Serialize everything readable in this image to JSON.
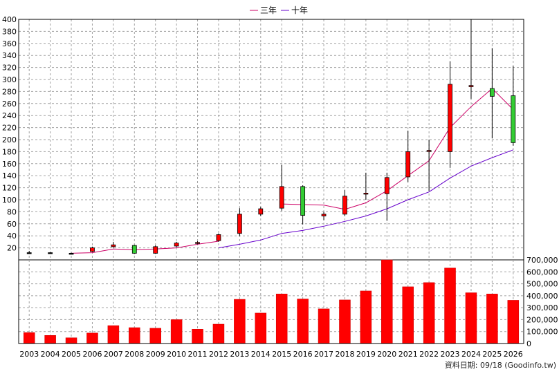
{
  "legend": [
    {
      "label": "三年",
      "color": "#cc0066"
    },
    {
      "label": "十年",
      "color": "#6600cc"
    }
  ],
  "source_text": "資料日期: 09/18  (Goodinfo.tw)",
  "colors": {
    "up": "#ff0000",
    "down": "#33cc33",
    "volume": "#ff0000",
    "grid": "#a0a0a0",
    "ma3": "#cc0066",
    "ma10": "#6600cc"
  },
  "chart_data": [
    {
      "type": "candlestick",
      "title": "",
      "xlabel": "",
      "ylabel": "",
      "ylim": [
        0,
        400
      ],
      "yticks": [
        20,
        40,
        60,
        80,
        100,
        120,
        140,
        160,
        180,
        200,
        220,
        240,
        260,
        280,
        300,
        320,
        340,
        360,
        380,
        400
      ],
      "grid": true,
      "legend_position": "top-center",
      "categories": [
        "2003",
        "2004",
        "2005",
        "2006",
        "2007",
        "2008",
        "2009",
        "2010",
        "2011",
        "2012",
        "2013",
        "2014",
        "2015",
        "2016",
        "2017",
        "2018",
        "2019",
        "2020",
        "2021",
        "2022",
        "2023",
        "2024",
        "2025",
        "2026"
      ],
      "candles": [
        {
          "open": 12,
          "close": 12,
          "high": 15,
          "low": 10
        },
        {
          "open": 12,
          "close": 12,
          "high": 13,
          "low": 11
        },
        {
          "open": 11,
          "close": 11,
          "high": 12,
          "low": 10
        },
        {
          "open": 14,
          "close": 20,
          "high": 22,
          "low": 13
        },
        {
          "open": 22,
          "close": 25,
          "high": 30,
          "low": 20
        },
        {
          "open": 24,
          "close": 11,
          "high": 25,
          "low": 10
        },
        {
          "open": 11,
          "close": 22,
          "high": 24,
          "low": 10
        },
        {
          "open": 23,
          "close": 28,
          "high": 30,
          "low": 21
        },
        {
          "open": 28,
          "close": 29,
          "high": 31,
          "low": 26
        },
        {
          "open": 32,
          "close": 42,
          "high": 44,
          "low": 30
        },
        {
          "open": 44,
          "close": 76,
          "high": 86,
          "low": 40
        },
        {
          "open": 76,
          "close": 85,
          "high": 88,
          "low": 73
        },
        {
          "open": 86,
          "close": 122,
          "high": 158,
          "low": 82
        },
        {
          "open": 122,
          "close": 74,
          "high": 124,
          "low": 59
        },
        {
          "open": 73,
          "close": 76,
          "high": 80,
          "low": 66
        },
        {
          "open": 76,
          "close": 106,
          "high": 116,
          "low": 73
        },
        {
          "open": 110,
          "close": 111,
          "high": 145,
          "low": 100
        },
        {
          "open": 110,
          "close": 137,
          "high": 145,
          "low": 65
        },
        {
          "open": 138,
          "close": 180,
          "high": 215,
          "low": 130
        },
        {
          "open": 181,
          "close": 182,
          "high": 200,
          "low": 115
        },
        {
          "open": 180,
          "close": 292,
          "high": 330,
          "low": 153
        },
        {
          "open": 288,
          "close": 290,
          "high": 400,
          "low": 268
        },
        {
          "open": 285,
          "close": 272,
          "high": 352,
          "low": 202
        },
        {
          "open": 273,
          "close": 195,
          "high": 322,
          "low": 190
        }
      ],
      "series": [
        {
          "name": "三年",
          "values": [
            null,
            null,
            11,
            12,
            18,
            17,
            18,
            20,
            26,
            31,
            null,
            null,
            93,
            92,
            91,
            84,
            95,
            115,
            140,
            165,
            220,
            255,
            285,
            250
          ]
        },
        {
          "name": "十年",
          "values": [
            null,
            null,
            null,
            null,
            null,
            null,
            null,
            null,
            null,
            20,
            26,
            33,
            44,
            49,
            56,
            64,
            73,
            85,
            100,
            113,
            136,
            156,
            170,
            183
          ]
        }
      ]
    },
    {
      "type": "bar",
      "title": "",
      "xlabel": "",
      "ylabel": "",
      "ylim": [
        0,
        700000
      ],
      "yticks": [
        0,
        100000,
        200000,
        300000,
        400000,
        500000,
        600000,
        700000
      ],
      "ytick_labels": [
        "0",
        "100,000",
        "200,000",
        "300,000",
        "400,000",
        "500,000",
        "600,000",
        "700,000"
      ],
      "grid": true,
      "categories": [
        "2003",
        "2004",
        "2005",
        "2006",
        "2007",
        "2008",
        "2009",
        "2010",
        "2011",
        "2012",
        "2013",
        "2014",
        "2015",
        "2016",
        "2017",
        "2018",
        "2019",
        "2020",
        "2021",
        "2022",
        "2023",
        "2024",
        "2025",
        "2026"
      ],
      "values": [
        92000,
        68000,
        48000,
        88000,
        150000,
        133000,
        128000,
        200000,
        120000,
        162000,
        370000,
        255000,
        415000,
        373000,
        290000,
        365000,
        440000,
        700000,
        475000,
        510000,
        632000,
        425000,
        415000,
        362000
      ]
    }
  ]
}
